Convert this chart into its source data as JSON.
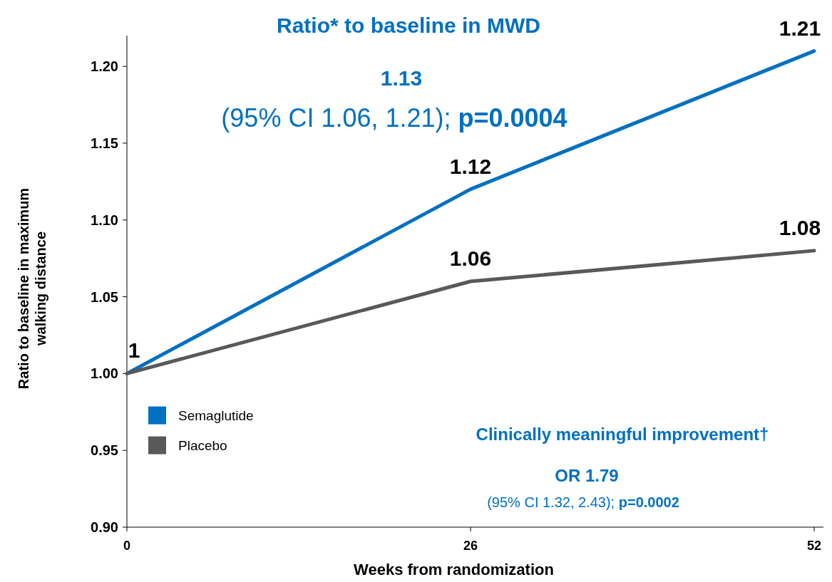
{
  "chart_data": {
    "type": "line",
    "title": "Ratio* to baseline in MWD",
    "xlabel": "Weeks from randomization",
    "ylabel": "Ratio to baseline in maximum walking distance",
    "x": [
      0,
      26,
      52
    ],
    "xlim": [
      0,
      52.7
    ],
    "xticks": [
      0,
      26,
      52
    ],
    "ylim": [
      0.9,
      1.22
    ],
    "yticks": [
      {
        "value": 0.9,
        "label": "0.90"
      },
      {
        "value": 0.95,
        "label": "0.95"
      },
      {
        "value": 1.0,
        "label": "1.00"
      },
      {
        "value": 1.05,
        "label": "1.05"
      },
      {
        "value": 1.1,
        "label": "1.10"
      },
      {
        "value": 1.15,
        "label": "1.15"
      },
      {
        "value": 1.2,
        "label": "1.20"
      }
    ],
    "series": [
      {
        "name": "Semaglutide",
        "color": "#0070c0",
        "values": [
          1,
          1.12,
          1.21
        ],
        "value_labels": [
          "1",
          "1.12",
          "1.21"
        ]
      },
      {
        "name": "Placebo",
        "color": "#595959",
        "values": [
          1,
          1.06,
          1.08
        ],
        "value_labels": [
          null,
          "1.06",
          "1.08"
        ]
      }
    ],
    "annotations": [
      "1.13",
      "(95% CI 1.06, 1.21);",
      "p=0.0004",
      "Clinically meaningful improvement†",
      "OR 1.79",
      "(95% CI 1.32, 2.43);",
      "p=0.0002"
    ],
    "grid": false,
    "legend": "bottom left",
    "marker": "none",
    "line_style": "solid"
  }
}
